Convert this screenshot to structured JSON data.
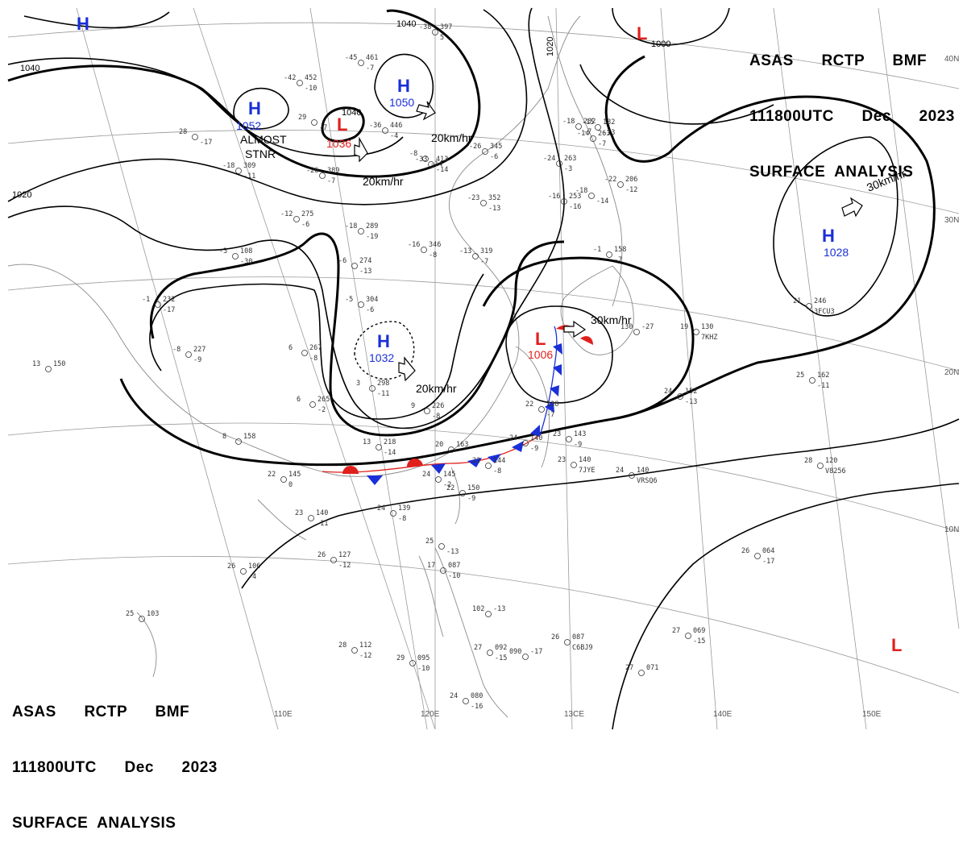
{
  "header": {
    "line1": "ASAS      RCTP      BMF",
    "line2": "111800UTC      Dec      2023",
    "line3": "SURFACE  ANALYSIS"
  },
  "footer": {
    "line1": "ASAS      RCTP      BMF",
    "line2": "111800UTC      Dec      2023",
    "line3": "SURFACE  ANALYSIS"
  },
  "grid_labels": {
    "lat_40": "40N",
    "lat_30": "30N",
    "lat_20": "20N",
    "lat_10": "10N",
    "lon_110": "110E",
    "lon_120": "120E",
    "lon_130": "13CE",
    "lon_140": "140E",
    "lon_150": "150E"
  },
  "isobar_labels": {
    "i1040_w": "1040",
    "i1020_w": "1020",
    "i1040_n": "1040",
    "i1020_n": "1020",
    "i1040_c": "1040",
    "i1000": "1000"
  },
  "systems": {
    "h_nw": {
      "letter": "H",
      "pressure": ""
    },
    "h_1052": {
      "letter": "H",
      "pressure": "1052"
    },
    "l_1036": {
      "letter": "L",
      "pressure": "1036"
    },
    "h_1050": {
      "letter": "H",
      "pressure": "1050"
    },
    "l_ne": {
      "letter": "L",
      "pressure": ""
    },
    "h_1028": {
      "letter": "H",
      "pressure": "1028"
    },
    "h_1032": {
      "letter": "H",
      "pressure": "1032"
    },
    "l_1006": {
      "letter": "L",
      "pressure": "1006"
    },
    "l_se": {
      "letter": "L",
      "pressure": ""
    }
  },
  "annotations": {
    "stnr1": "ALMOST",
    "stnr2": "STNR",
    "m1": "20km/hr",
    "m2": "20km/hr",
    "m3": "30km/hr",
    "m4": "20km/hr",
    "m5": "30km/hr"
  },
  "stations": [
    {
      "a": "-42",
      "b": "452",
      "c": "-10"
    },
    {
      "a": "-45",
      "b": "461",
      "c": "-7"
    },
    {
      "a": "-38",
      "b": "397",
      "c": "5"
    },
    {
      "a": "-36",
      "b": "446",
      "c": "-4"
    },
    {
      "a": "-26",
      "b": "345",
      "c": "-6"
    },
    {
      "a": "-33",
      "b": "413",
      "c": "-14"
    },
    {
      "a": "-24",
      "b": "263",
      "c": "-3"
    },
    {
      "a": "-26",
      "b": "389",
      "c": "-7"
    },
    {
      "a": "-18",
      "b": "289",
      "c": "-19"
    },
    {
      "a": "-16",
      "b": "346",
      "c": "-8"
    },
    {
      "a": "-23",
      "b": "352",
      "c": "-13"
    },
    {
      "a": "-16",
      "b": "253",
      "c": "-16"
    },
    {
      "a": "-13",
      "b": "319",
      "c": "-7"
    },
    {
      "a": "-3",
      "b": "108",
      "c": "-30"
    },
    {
      "a": "-6",
      "b": "274",
      "c": "-13"
    },
    {
      "a": "-1",
      "b": "232",
      "c": "-17"
    },
    {
      "a": "-5",
      "b": "304",
      "c": "-6"
    },
    {
      "a": "6",
      "b": "267",
      "c": "-8"
    },
    {
      "a": "-8",
      "b": "227",
      "c": "-9"
    },
    {
      "a": "13",
      "b": "150",
      "c": ""
    },
    {
      "a": "3",
      "b": "298",
      "c": "-11"
    },
    {
      "a": "9",
      "b": "226",
      "c": "-8"
    },
    {
      "a": "6",
      "b": "265",
      "c": "-2"
    },
    {
      "a": "8",
      "b": "158",
      "c": ""
    },
    {
      "a": "13",
      "b": "218",
      "c": "-14"
    },
    {
      "a": "20",
      "b": "163",
      "c": ""
    },
    {
      "a": "22",
      "b": "145",
      "c": "0"
    },
    {
      "a": "24",
      "b": "145",
      "c": "-2"
    },
    {
      "a": "23",
      "b": "144",
      "c": "-8"
    },
    {
      "a": "24",
      "b": "140",
      "c": "-9"
    },
    {
      "a": "22",
      "b": "138",
      "c": "-7"
    },
    {
      "a": "23",
      "b": "143",
      "c": "-9"
    },
    {
      "a": "23",
      "b": "140",
      "c": "7JYE"
    },
    {
      "a": "24",
      "b": "140",
      "c": "VRSQ6"
    },
    {
      "a": "24",
      "b": "152",
      "c": "-13"
    },
    {
      "a": "25",
      "b": "162",
      "c": "-11"
    },
    {
      "a": "19",
      "b": "130",
      "c": "7KHZ"
    },
    {
      "a": "130",
      "b": "-27",
      "c": ""
    },
    {
      "a": "21",
      "b": "246",
      "c": "3FCU3"
    },
    {
      "a": "22",
      "b": "150",
      "c": "-9"
    },
    {
      "a": "23",
      "b": "140",
      "c": "-11"
    },
    {
      "a": "24",
      "b": "139",
      "c": "-8"
    },
    {
      "a": "26",
      "b": "127",
      "c": "-12"
    },
    {
      "a": "26",
      "b": "106",
      "c": "-4"
    },
    {
      "a": "25",
      "b": "103",
      "c": ""
    },
    {
      "a": "28",
      "b": "112",
      "c": "-12"
    },
    {
      "a": "29",
      "b": "095",
      "c": "-10"
    },
    {
      "a": "27",
      "b": "092",
      "c": "-15"
    },
    {
      "a": "090",
      "b": "-17",
      "c": ""
    },
    {
      "a": "26",
      "b": "087",
      "c": "C6BJ9"
    },
    {
      "a": "27",
      "b": "071",
      "c": ""
    },
    {
      "a": "27",
      "b": "069",
      "c": "-15"
    },
    {
      "a": "26",
      "b": "064",
      "c": "-17"
    },
    {
      "a": "28",
      "b": "120",
      "c": "V8256"
    },
    {
      "a": "24",
      "b": "080",
      "c": "-16"
    },
    {
      "a": "17",
      "b": "087",
      "c": "-10"
    },
    {
      "a": "25",
      "b": "",
      "c": "-13"
    },
    {
      "a": "102",
      "b": "-13",
      "c": ""
    },
    {
      "a": "-18",
      "b": "309",
      "c": "-11"
    },
    {
      "a": "29",
      "b": "",
      "c": "-7"
    },
    {
      "a": "-8",
      "b": "",
      "c": "-14"
    },
    {
      "a": "28",
      "b": "",
      "c": "-17"
    },
    {
      "a": "-12",
      "b": "275",
      "c": "-6"
    },
    {
      "a": "-18",
      "b": "202",
      "c": "-7"
    },
    {
      "a": "-14",
      "b": "263",
      "c": "-7"
    },
    {
      "a": "-1",
      "b": "158",
      "c": "-7"
    },
    {
      "a": "-22",
      "b": "206",
      "c": "-12"
    },
    {
      "a": "-15",
      "b": "182",
      "c": "-13"
    },
    {
      "a": "-18",
      "b": "",
      "c": "-14"
    }
  ]
}
